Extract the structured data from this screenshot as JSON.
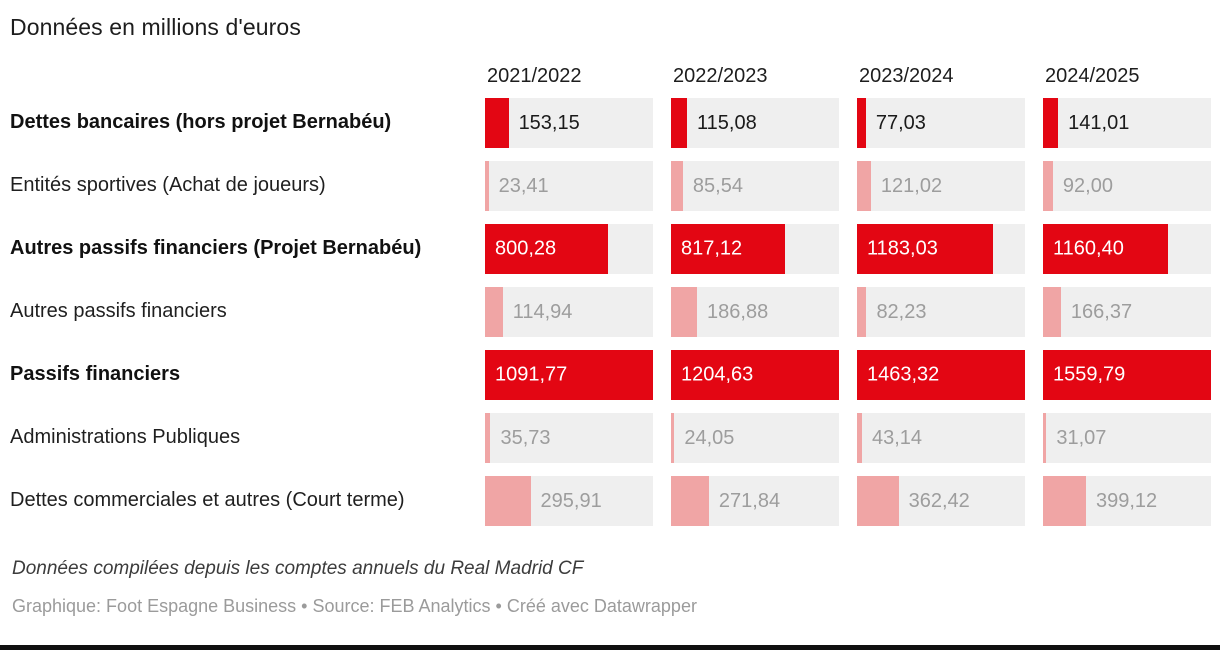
{
  "title": "Données en millions d'euros",
  "colors": {
    "red": "#e30613",
    "pink": "#f0a5a5",
    "track_gray": "#efefef",
    "value_dark": "#1a1a1a",
    "value_gray": "#9d9d9d",
    "value_white": "#ffffff",
    "byline_gray": "#9b9b9b",
    "bottom_bar": "#101010"
  },
  "chart_data": {
    "type": "bar",
    "title": "Données en millions d'euros",
    "unit": "millions d'euros",
    "categories": [
      "2021/2022",
      "2022/2023",
      "2023/2024",
      "2024/2025"
    ],
    "column_scale_max": [
      1091.77,
      1204.63,
      1463.32,
      1559.79
    ],
    "scale_note": "bars scaled per column relative to the 'Passifs financiers' total of that column",
    "legend": "none",
    "grid": false,
    "series": [
      {
        "name": "Dettes bancaires (hors projet Bernabéu)",
        "values": [
          153.15,
          115.08,
          77.03,
          141.01
        ]
      },
      {
        "name": "Entités sportives (Achat de joueurs)",
        "values": [
          23.41,
          85.54,
          121.02,
          92.0
        ]
      },
      {
        "name": "Autres passifs financiers (Projet Bernabéu)",
        "values": [
          800.28,
          817.12,
          1183.03,
          1160.4
        ]
      },
      {
        "name": "Autres passifs financiers",
        "values": [
          114.94,
          186.88,
          82.23,
          166.37
        ]
      },
      {
        "name": "Passifs financiers",
        "values": [
          1091.77,
          1204.63,
          1463.32,
          1559.79
        ]
      },
      {
        "name": "Administrations Publiques",
        "values": [
          35.73,
          24.05,
          43.14,
          31.07
        ]
      },
      {
        "name": "Dettes commerciales et autres (Court terme)",
        "values": [
          295.91,
          271.84,
          362.42,
          399.12
        ]
      }
    ]
  },
  "rows": [
    {
      "label": "Dettes bancaires (hors projet Bernabéu)",
      "bold": true,
      "bar_color": "red",
      "value_inside": false,
      "value_color": "#1a1a1a",
      "values": [
        153.15,
        115.08,
        77.03,
        141.01
      ],
      "display": [
        "153,15",
        "115,08",
        "77,03",
        "141,01"
      ]
    },
    {
      "label": "Entités sportives (Achat de joueurs)",
      "bold": false,
      "bar_color": "pink",
      "value_inside": false,
      "value_color": "#9d9d9d",
      "values": [
        23.41,
        85.54,
        121.02,
        92.0
      ],
      "display": [
        "23,41",
        "85,54",
        "121,02",
        "92,00"
      ]
    },
    {
      "label": "Autres passifs financiers (Projet Bernabéu)",
      "bold": true,
      "bar_color": "red",
      "value_inside": true,
      "value_color": "#ffffff",
      "values": [
        800.28,
        817.12,
        1183.03,
        1160.4
      ],
      "display": [
        "800,28",
        "817,12",
        "1183,03",
        "1160,40"
      ]
    },
    {
      "label": "Autres passifs financiers",
      "bold": false,
      "bar_color": "pink",
      "value_inside": false,
      "value_color": "#9d9d9d",
      "values": [
        114.94,
        186.88,
        82.23,
        166.37
      ],
      "display": [
        "114,94",
        "186,88",
        "82,23",
        "166,37"
      ]
    },
    {
      "label": "Passifs financiers",
      "bold": true,
      "bar_color": "red",
      "value_inside": true,
      "value_color": "#ffffff",
      "values": [
        1091.77,
        1204.63,
        1463.32,
        1559.79
      ],
      "display": [
        "1091,77",
        "1204,63",
        "1463,32",
        "1559,79"
      ]
    },
    {
      "label": "Administrations Publiques",
      "bold": false,
      "bar_color": "pink",
      "value_inside": false,
      "value_color": "#9d9d9d",
      "values": [
        35.73,
        24.05,
        43.14,
        31.07
      ],
      "display": [
        "35,73",
        "24,05",
        "43,14",
        "31,07"
      ]
    },
    {
      "label": "Dettes commerciales et autres (Court terme)",
      "bold": false,
      "bar_color": "pink",
      "value_inside": false,
      "value_color": "#9d9d9d",
      "values": [
        295.91,
        271.84,
        362.42,
        399.12
      ],
      "display": [
        "295,91",
        "271,84",
        "362,42",
        "399,12"
      ]
    }
  ],
  "footer": {
    "note": "Données compilées depuis les comptes annuels du Real Madrid CF",
    "byline": "Graphique: Foot Espagne Business • Source: FEB Analytics • Créé avec Datawrapper"
  }
}
